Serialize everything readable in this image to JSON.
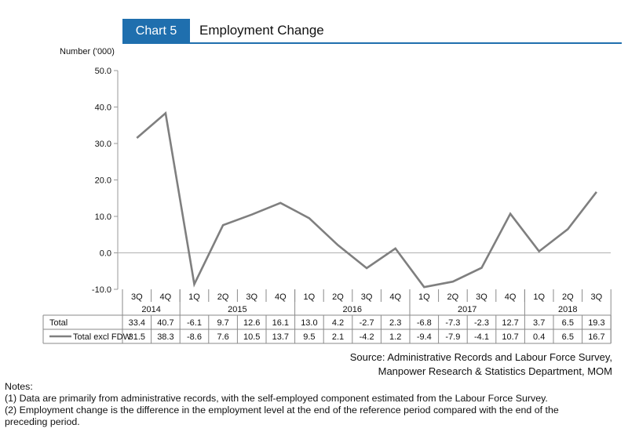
{
  "header": {
    "badge": "Chart 5",
    "title": "Employment Change"
  },
  "colors": {
    "accent": "#1f6fae",
    "line": "#7f7f7f"
  },
  "chart_data": {
    "type": "line",
    "ylabel": "Number ('000)",
    "ylim": [
      -10,
      50
    ],
    "yticks": [
      "50.0",
      "40.0",
      "30.0",
      "20.0",
      "10.0",
      "0.0",
      "-10.0"
    ],
    "quarters": [
      "3Q",
      "4Q",
      "1Q",
      "2Q",
      "3Q",
      "4Q",
      "1Q",
      "2Q",
      "3Q",
      "4Q",
      "1Q",
      "2Q",
      "3Q",
      "4Q",
      "1Q",
      "2Q",
      "3Q"
    ],
    "years": [
      {
        "label": "2014",
        "start": 0,
        "end": 1
      },
      {
        "label": "2015",
        "start": 2,
        "end": 5
      },
      {
        "label": "2016",
        "start": 6,
        "end": 9
      },
      {
        "label": "2017",
        "start": 10,
        "end": 13
      },
      {
        "label": "2018",
        "start": 14,
        "end": 16
      }
    ],
    "series": [
      {
        "name": "Total",
        "plotted": false,
        "display": [
          "33.4",
          "40.7",
          "-6.1",
          "9.7",
          "12.6",
          "16.1",
          "13.0",
          "4.2",
          "-2.7",
          "2.3",
          "-6.8",
          "-7.3",
          "-2.3",
          "12.7",
          "3.7",
          "6.5",
          "19.3"
        ]
      },
      {
        "name": "Total excl FDW",
        "plotted": true,
        "display": [
          "31.5",
          "38.3",
          "-8.6",
          "7.6",
          "10.5",
          "13.7",
          "9.5",
          "2.1",
          "-4.2",
          "1.2",
          "-9.4",
          "-7.9",
          "-4.1",
          "10.7",
          "0.4",
          "6.5",
          "16.7"
        ],
        "values": [
          31.5,
          38.3,
          -8.6,
          7.6,
          10.5,
          13.7,
          9.5,
          2.1,
          -4.2,
          1.2,
          -9.4,
          -7.9,
          -4.1,
          10.7,
          0.4,
          6.5,
          16.7
        ]
      }
    ],
    "grid": false
  },
  "source": {
    "line1": "Source: Administrative Records and Labour Force Survey,",
    "line2": "Manpower Research & Statistics Department, MOM"
  },
  "notes": {
    "heading": "Notes:",
    "note1": "(1)  Data are primarily from administrative records, with the self-employed component estimated from the Labour Force Survey.",
    "note2": "(2)  Employment change is the difference in the employment level at the end of the reference period compared with the end of the",
    "note3": "preceding period."
  }
}
